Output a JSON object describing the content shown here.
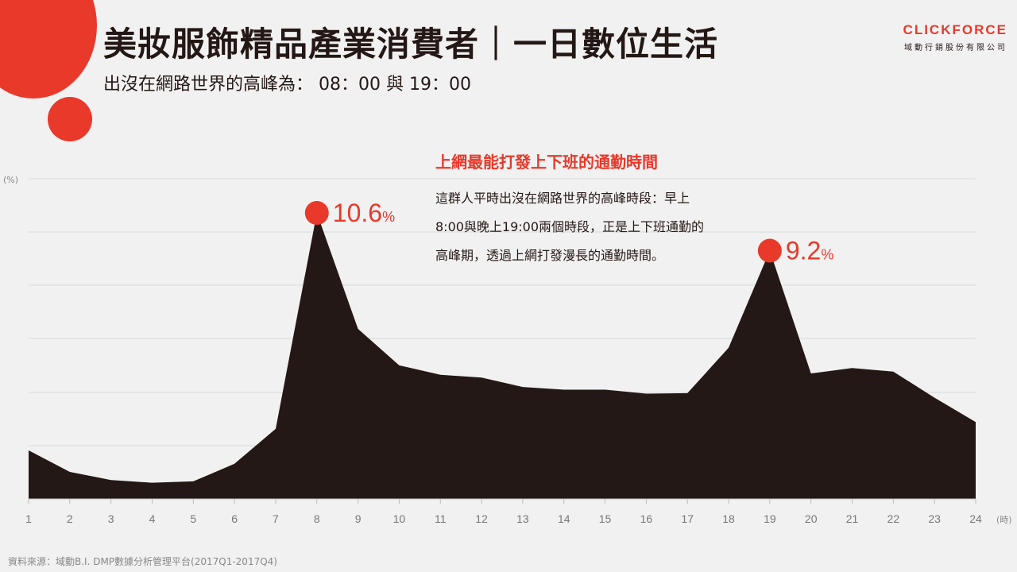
{
  "header": {
    "title": "美妝服飾精品產業消費者｜一日數位生活",
    "subtitle": "出沒在網路世界的高峰為： 08：00 與 19：00"
  },
  "logo": {
    "name": "CLICKFORCE",
    "tagline": "域動行銷股份有限公司"
  },
  "callout": {
    "title": "上網最能打發上下班的通勤時間",
    "body": "這群人平時出沒在網路世界的高峰時段：早上8:00與晚上19:00兩個時段，正是上下班通勤的高峰期，透過上網打發漫長的通勤時間。"
  },
  "source": "資料來源：域動B.I. DMP數據分析管理平台(2017Q1-2017Q4)",
  "colors": {
    "accent": "#e8392a",
    "area": "#231815",
    "background": "#f2f1f1",
    "grid": "#d9d9d9"
  },
  "chart_data": {
    "type": "area",
    "x": [
      1,
      2,
      3,
      4,
      5,
      6,
      7,
      8,
      9,
      10,
      11,
      12,
      13,
      14,
      15,
      16,
      17,
      18,
      19,
      20,
      21,
      22,
      23,
      24
    ],
    "values": [
      1.8,
      1.0,
      0.7,
      0.6,
      0.65,
      1.3,
      2.6,
      10.6,
      6.3,
      4.95,
      4.6,
      4.5,
      4.15,
      4.05,
      4.05,
      3.9,
      3.92,
      5.6,
      9.2,
      4.65,
      4.85,
      4.72,
      3.75,
      2.85
    ],
    "ylim": [
      0,
      10.6
    ],
    "ylabel": "(%)",
    "xlabel": "(時)",
    "grid": true,
    "legend": "none",
    "annotations": [
      {
        "x": 8,
        "value": "10.6",
        "unit": "%"
      },
      {
        "x": 19,
        "value": "9.2",
        "unit": "%"
      }
    ]
  }
}
